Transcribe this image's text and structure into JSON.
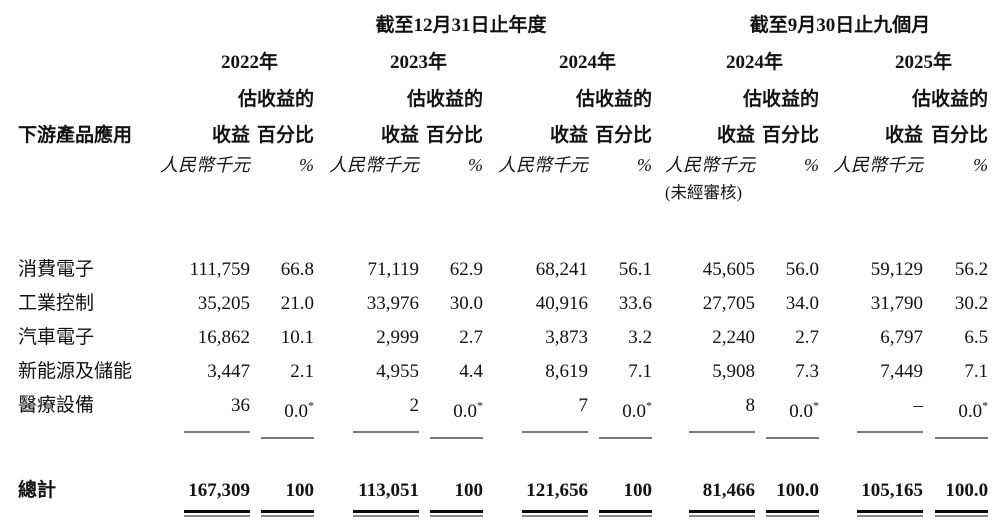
{
  "document": {
    "table": {
      "row_axis_title": "下游產品應用",
      "column_groups": [
        {
          "title": "截至12月31日止年度",
          "years": [
            "2022年",
            "2023年",
            "2024年"
          ]
        },
        {
          "title": "截至9月30日止九個月",
          "years": [
            "2024年",
            "2025年"
          ]
        }
      ],
      "column_headers": {
        "pct_qualifier": "估收益的",
        "revenue": "收益",
        "percentage": "百分比",
        "revenue_unit": "人民幣千元",
        "percentage_unit": "%",
        "unaudited_note": "(未經審核)"
      },
      "rows": [
        {
          "label": "消費電子",
          "values": [
            "111,759",
            "66.8",
            "71,119",
            "62.9",
            "68,241",
            "56.1",
            "45,605",
            "56.0",
            "59,129",
            "56.2"
          ]
        },
        {
          "label": "工業控制",
          "values": [
            "35,205",
            "21.0",
            "33,976",
            "30.0",
            "40,916",
            "33.6",
            "27,705",
            "34.0",
            "31,790",
            "30.2"
          ]
        },
        {
          "label": "汽車電子",
          "values": [
            "16,862",
            "10.1",
            "2,999",
            "2.7",
            "3,873",
            "3.2",
            "2,240",
            "2.7",
            "6,797",
            "6.5"
          ]
        },
        {
          "label": "新能源及儲能",
          "values": [
            "3,447",
            "2.1",
            "4,955",
            "4.4",
            "8,619",
            "7.1",
            "5,908",
            "7.3",
            "7,449",
            "7.1"
          ]
        },
        {
          "label": "醫療設備",
          "values": [
            "36",
            "0.0*",
            "2",
            "0.0*",
            "7",
            "0.0*",
            "8",
            "0.0*",
            "–",
            "0.0*"
          ]
        }
      ],
      "total_row": {
        "label": "總計",
        "values": [
          "167,309",
          "100",
          "113,051",
          "100",
          "121,656",
          "100",
          "81,466",
          "100.0",
          "105,165",
          "100.0"
        ]
      },
      "colors": {
        "text": "#121212",
        "thin_rule": "#7a7a7a",
        "thick_rule": "#0a0a0a"
      }
    }
  }
}
